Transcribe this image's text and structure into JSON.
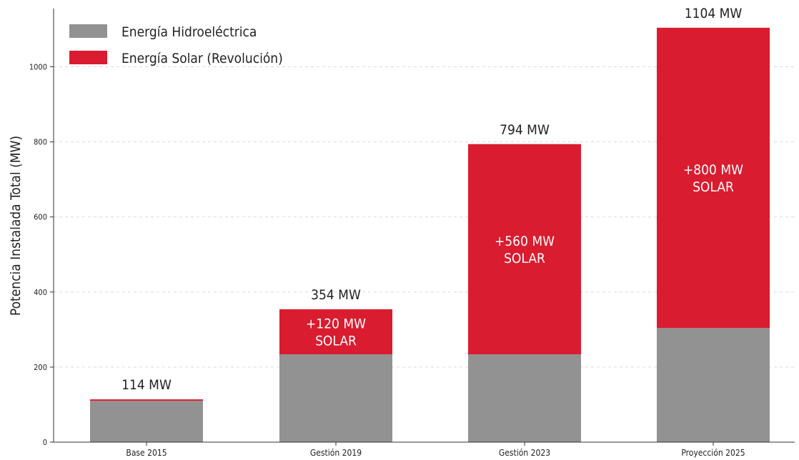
{
  "chart_data": {
    "type": "bar",
    "stacked": true,
    "categories": [
      "Base 2015",
      "Gestión 2019",
      "Gestión 2023",
      "Proyección 2025"
    ],
    "series": [
      {
        "name": "Energía Hidroeléctrica",
        "color": "#929292",
        "values": [
          110,
          234,
          234,
          304
        ]
      },
      {
        "name": "Energía Solar (Revolución)",
        "color": "#d91c2f",
        "values": [
          4,
          120,
          560,
          800
        ]
      }
    ],
    "totals": [
      "114 MW",
      "354 MW",
      "794 MW",
      "1104 MW"
    ],
    "bar_labels": [
      [],
      [
        "+120 MW",
        "SOLAR"
      ],
      [
        "+560 MW",
        "SOLAR"
      ],
      [
        "+800 MW",
        "SOLAR"
      ]
    ],
    "ylabel": "Potencia Instalada Total (MW)",
    "xlabel": "",
    "title": "",
    "ylim": [
      0,
      1150
    ],
    "yticks": [
      0,
      200,
      400,
      600,
      800,
      1000
    ],
    "grid": true,
    "legend_position": "top-left"
  }
}
